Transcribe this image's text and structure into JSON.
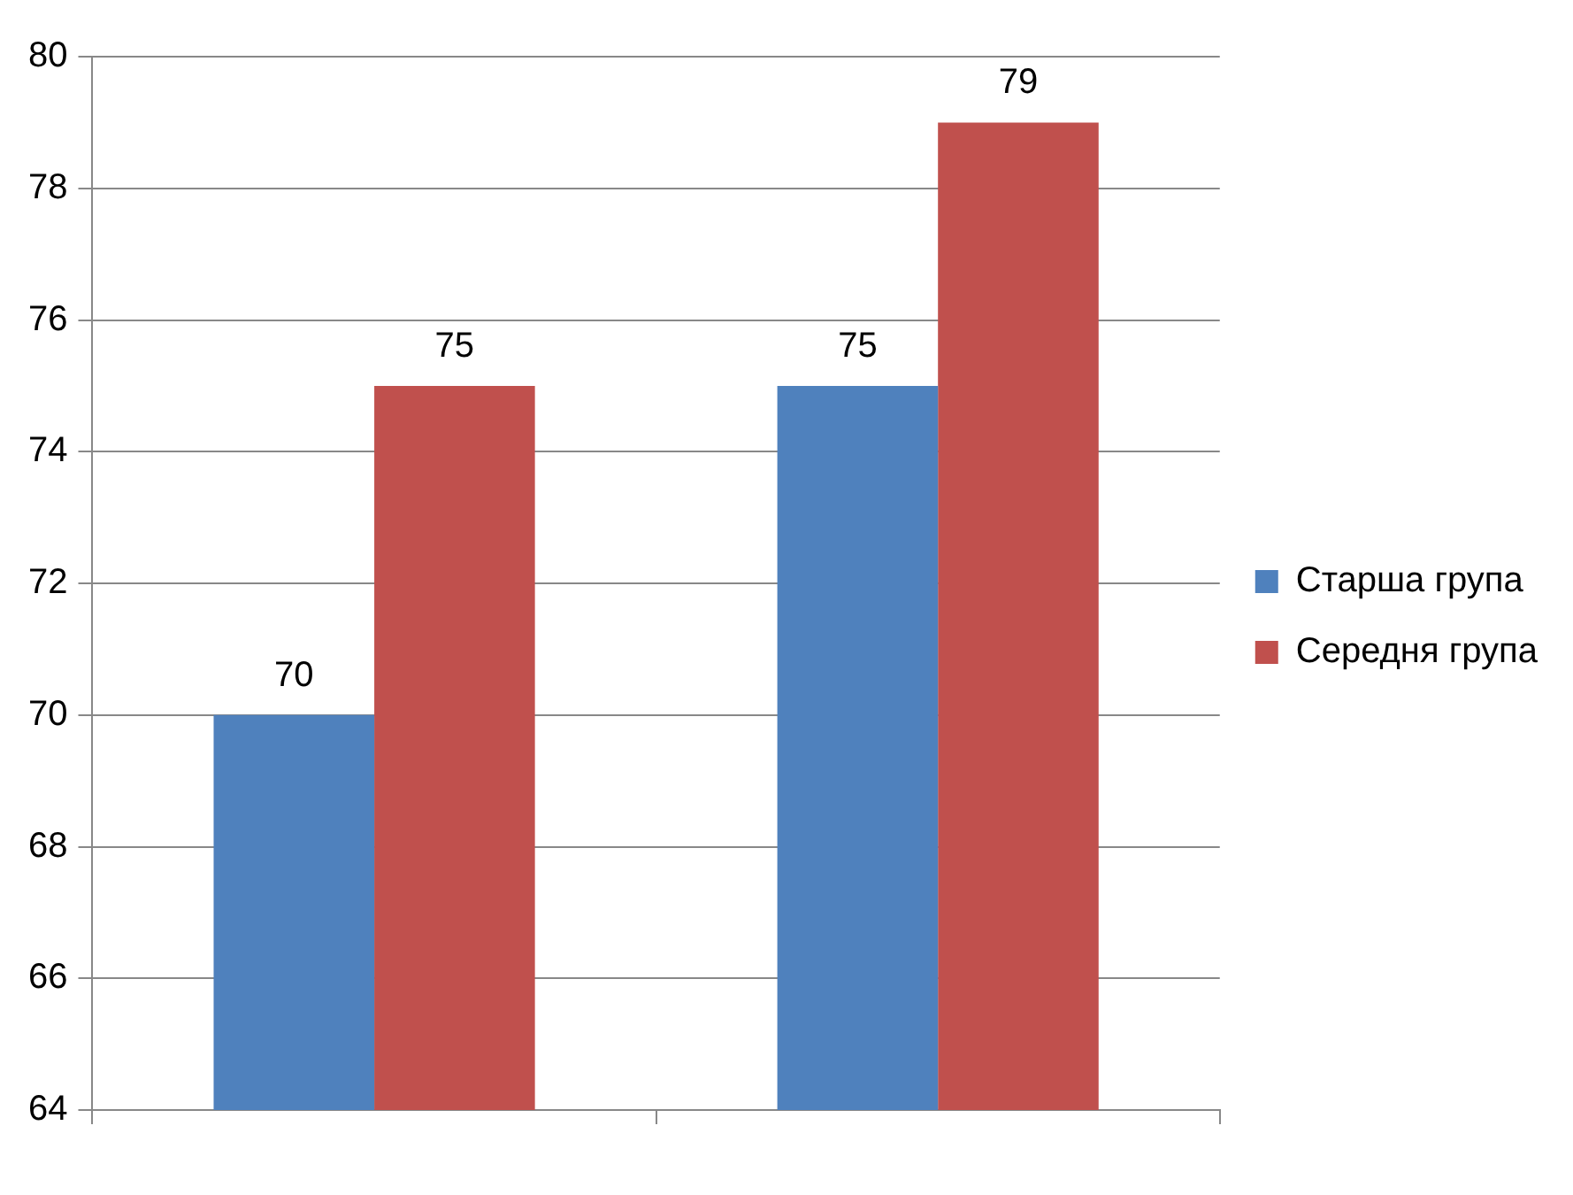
{
  "chart_data": {
    "type": "bar",
    "categories": [
      null,
      null
    ],
    "series": [
      {
        "name": "Старша група",
        "color": "#4f81bd",
        "values": [
          70,
          75
        ]
      },
      {
        "name": "Середня група",
        "color": "#c0504d",
        "values": [
          75,
          79
        ]
      }
    ],
    "ylim": [
      64,
      80
    ],
    "yticks": [
      64,
      66,
      68,
      70,
      72,
      74,
      76,
      78,
      80
    ],
    "grid": "y",
    "legend": "right",
    "data_labels": true
  }
}
